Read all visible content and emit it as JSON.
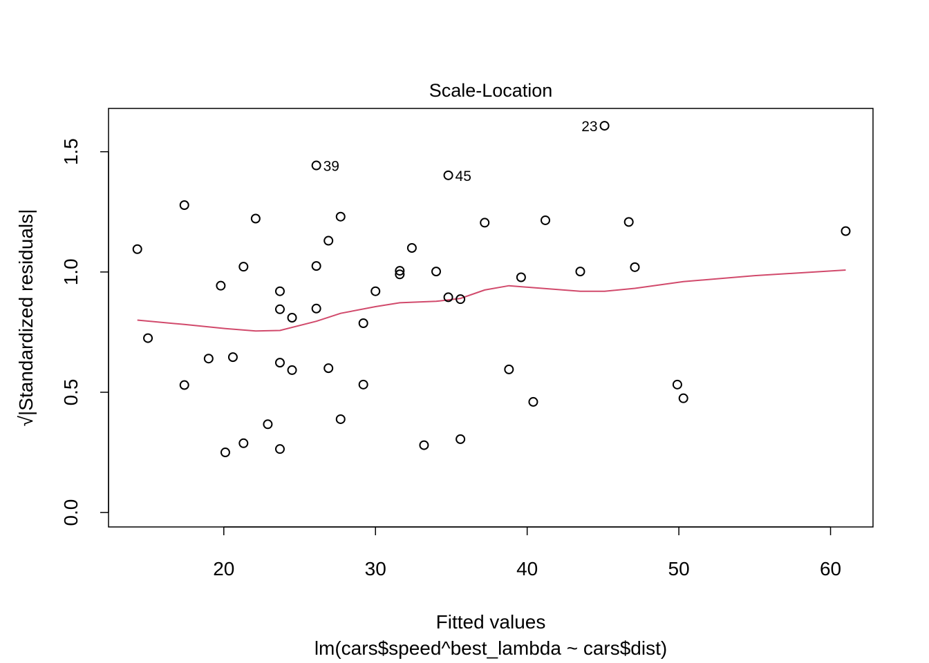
{
  "chart_data": {
    "type": "scatter",
    "title": "Scale-Location",
    "xlabel": "Fitted values",
    "sublabel": "lm(cars$speed^best_lambda ~ cars$dist)",
    "ylabel_radical": "√",
    "ylabel": "|Standardized residuals|",
    "xlim": [
      12.4,
      62.8
    ],
    "ylim": [
      -0.06,
      1.68
    ],
    "xticks": [
      20,
      30,
      40,
      50,
      60
    ],
    "yticks": [
      0.0,
      0.5,
      1.0,
      1.5
    ],
    "ytick_labels": [
      "0.0",
      "0.5",
      "1.0",
      "1.5"
    ],
    "grid": false,
    "smooth_color": "#d1496b",
    "points": [
      {
        "x": 14.3,
        "y": 1.095
      },
      {
        "x": 15.0,
        "y": 0.725
      },
      {
        "x": 17.4,
        "y": 1.278
      },
      {
        "x": 17.4,
        "y": 0.53
      },
      {
        "x": 19.0,
        "y": 0.64
      },
      {
        "x": 19.8,
        "y": 0.943
      },
      {
        "x": 20.1,
        "y": 0.25
      },
      {
        "x": 20.6,
        "y": 0.646
      },
      {
        "x": 21.3,
        "y": 1.022
      },
      {
        "x": 21.3,
        "y": 0.288
      },
      {
        "x": 22.1,
        "y": 1.222
      },
      {
        "x": 22.9,
        "y": 0.367
      },
      {
        "x": 23.7,
        "y": 0.92
      },
      {
        "x": 23.7,
        "y": 0.845
      },
      {
        "x": 23.7,
        "y": 0.623
      },
      {
        "x": 23.7,
        "y": 0.264
      },
      {
        "x": 24.5,
        "y": 0.81
      },
      {
        "x": 24.5,
        "y": 0.592
      },
      {
        "x": 26.1,
        "y": 1.443,
        "label": "39"
      },
      {
        "x": 26.1,
        "y": 1.025
      },
      {
        "x": 26.1,
        "y": 0.848
      },
      {
        "x": 26.9,
        "y": 1.13
      },
      {
        "x": 26.9,
        "y": 0.6
      },
      {
        "x": 27.7,
        "y": 1.23
      },
      {
        "x": 27.7,
        "y": 0.388
      },
      {
        "x": 29.2,
        "y": 0.787
      },
      {
        "x": 29.2,
        "y": 0.532
      },
      {
        "x": 30.0,
        "y": 0.92
      },
      {
        "x": 31.6,
        "y": 1.005
      },
      {
        "x": 31.6,
        "y": 0.99
      },
      {
        "x": 32.4,
        "y": 1.1
      },
      {
        "x": 33.2,
        "y": 0.28
      },
      {
        "x": 34.0,
        "y": 1.002
      },
      {
        "x": 34.8,
        "y": 1.402,
        "label": "45"
      },
      {
        "x": 34.8,
        "y": 0.895
      },
      {
        "x": 35.6,
        "y": 0.887
      },
      {
        "x": 35.6,
        "y": 0.305
      },
      {
        "x": 37.2,
        "y": 1.205
      },
      {
        "x": 38.8,
        "y": 0.595
      },
      {
        "x": 39.6,
        "y": 0.978
      },
      {
        "x": 40.4,
        "y": 0.46
      },
      {
        "x": 41.2,
        "y": 1.215
      },
      {
        "x": 43.5,
        "y": 1.002
      },
      {
        "x": 45.1,
        "y": 1.608,
        "label": "23"
      },
      {
        "x": 46.7,
        "y": 1.208
      },
      {
        "x": 47.1,
        "y": 1.02
      },
      {
        "x": 49.9,
        "y": 0.532
      },
      {
        "x": 50.3,
        "y": 0.475
      },
      {
        "x": 61.0,
        "y": 1.17
      }
    ],
    "smooth": {
      "x": [
        14.3,
        17.4,
        20.1,
        22.1,
        23.7,
        26.1,
        27.7,
        30.0,
        31.6,
        34.0,
        35.6,
        37.2,
        38.8,
        40.4,
        43.5,
        45.1,
        47.1,
        50.3,
        55.0,
        61.0
      ],
      "y": [
        0.8,
        0.782,
        0.765,
        0.755,
        0.757,
        0.795,
        0.828,
        0.856,
        0.872,
        0.878,
        0.89,
        0.925,
        0.943,
        0.935,
        0.92,
        0.92,
        0.932,
        0.96,
        0.985,
        1.008
      ]
    }
  }
}
